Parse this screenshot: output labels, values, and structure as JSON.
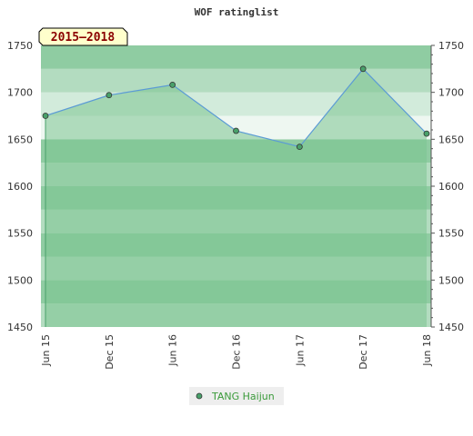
{
  "chart_data": {
    "type": "area",
    "title": "WOF ratinglist",
    "period_label": "2015–2018",
    "x_labels": [
      "Jun 15",
      "Dec 15",
      "Jun 16",
      "Dec 16",
      "Jun 17",
      "Dec 17",
      "Jun 18"
    ],
    "series": [
      {
        "name": "TANG Haijun",
        "values": [
          1675,
          1697,
          1708,
          1659,
          1642,
          1725,
          1656
        ]
      }
    ],
    "ylim": [
      1450,
      1750
    ],
    "y_ticks": [
      1450,
      1500,
      1550,
      1600,
      1650,
      1700,
      1750
    ],
    "grid": true,
    "legend_position": "bottom-center"
  },
  "colors": {
    "area_fill": "#7cc48f",
    "line": "#5b9bd5",
    "marker": "#49a06a",
    "band_dark": "#8fcca2",
    "band_light": "#b3dcc0",
    "band_lighter": "#d2ebdb",
    "band_lightest": "#eef7f1",
    "badge_bg": "#ffffcc"
  }
}
